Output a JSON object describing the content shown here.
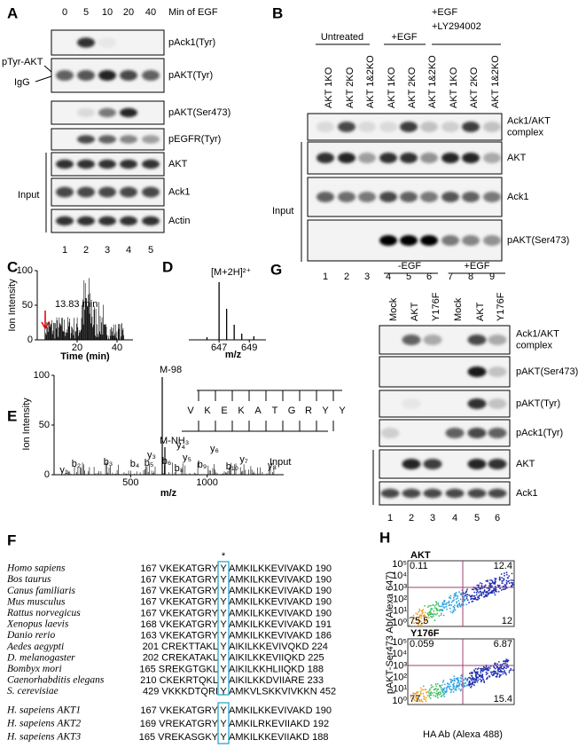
{
  "panels": {
    "A": {
      "label": "A",
      "time_values": [
        0,
        5,
        10,
        20,
        40
      ],
      "time_unit": "Min of EGF",
      "side_labels": [
        "pTyr-AKT",
        "IgG"
      ],
      "blots": [
        "pAck1(Tyr)",
        "pAKT(Tyr)",
        "pAKT(Ser473)",
        "pEGFR(Tyr)",
        "AKT",
        "Ack1",
        "Actin"
      ],
      "input_label": "Input",
      "lanes": [
        1,
        2,
        3,
        4,
        5
      ]
    },
    "B": {
      "label": "B",
      "groups": [
        [
          "Untreated"
        ],
        [
          "+EGF"
        ],
        [
          "+EGF",
          "+LY294002"
        ]
      ],
      "lane_labels": [
        "AKT 1KO",
        "AKT 2KO",
        "AKT 1&2KO",
        "AKT 1KO",
        "AKT 2KO",
        "AKT 1&2KO",
        "AKT 1KO",
        "AKT 2KO",
        "AKT 1&2KO"
      ],
      "blots": [
        [
          "Ack1/AKT",
          "complex"
        ],
        [
          "AKT"
        ],
        [
          "Ack1"
        ],
        [
          "pAKT(Ser473)"
        ]
      ],
      "input_label": "Input",
      "lanes": [
        1,
        2,
        3,
        4,
        5,
        6,
        7,
        8,
        9
      ]
    },
    "C": {
      "label": "C",
      "ylabel": "Ion Intensity",
      "yticks": [
        0,
        50,
        100
      ],
      "xlim": [
        0,
        48
      ],
      "xticks": [
        20,
        40
      ],
      "xlabel": "Time (min)",
      "annotation": "13.83 min"
    },
    "D": {
      "label": "D",
      "annotation": "[M+2H]²⁺",
      "xlim": [
        645,
        650.1
      ],
      "xticks": [
        647,
        649
      ],
      "xlabel": "m/z"
    },
    "E": {
      "label": "E",
      "ylabel": "Ion Intensity",
      "yticks": [
        0,
        50,
        100
      ],
      "xlim": [
        0,
        1500
      ],
      "xticks": [
        500,
        1000
      ],
      "xlabel": "m/z",
      "peak_labels": [
        "M-98",
        "M-NH₃"
      ],
      "sequence": [
        "V",
        "K",
        "E",
        "K",
        "A",
        "T",
        "G",
        "R",
        "Y",
        "Y"
      ],
      "b_ions": [
        "b₂",
        "b₃",
        "b₄",
        "b₅",
        "b₆",
        "b₈",
        "b₉",
        "b₁₀"
      ],
      "y_ions": [
        "y₁",
        "y₃",
        "y₄",
        "y₅",
        "y₆",
        "y₇",
        "y₈"
      ]
    },
    "F": {
      "label": "F",
      "site_marker": "*",
      "rows": [
        {
          "name": "Homo sapiens",
          "left": "167 VKEKATGRY",
          "site": "Y",
          "right": "AMKILKKEVIVAKD 190"
        },
        {
          "name": "Bos taurus",
          "left": "167 VKEKATGRY",
          "site": "Y",
          "right": "AMKILKKEVIVAKD 190"
        },
        {
          "name": "Canus familiaris",
          "left": "167 VKEKATGRY",
          "site": "Y",
          "right": "AMKILKKEVIVAKD 190"
        },
        {
          "name": "Mus musculus",
          "left": "167 VKEKATGRY",
          "site": "Y",
          "right": "AMKILKKEVIVAKD 190"
        },
        {
          "name": "Rattus norvegicus",
          "left": "167 VKEKATGRY",
          "site": "Y",
          "right": "AMKILKKEVIVAKD 190"
        },
        {
          "name": "Xenopus laevis",
          "left": "168 VKEKATGRY",
          "site": "Y",
          "right": "AMKILKKEVIVAKD 191"
        },
        {
          "name": "Danio rerio",
          "left": "163 VKEKATGRY",
          "site": "Y",
          "right": "AMKILKKEVIVAKD 186"
        },
        {
          "name": "Aedes aegypti",
          "left": "201 CREKTTAKL",
          "site": "Y",
          "right": "AIKILKKEVIVQKD 224"
        },
        {
          "name": "D. melanogaster",
          "left": "202 CREKATAKL",
          "site": "Y",
          "right": "AIKILKKEVIIQKD 225"
        },
        {
          "name": "Bombyx mori",
          "left": "165 SREKGTGKL",
          "site": "Y",
          "right": "AIKILKKHLIIQKD 188"
        },
        {
          "name": "Caenorhabditis elegans",
          "left": "210 CKEKRTQKL",
          "site": "Y",
          "right": "AIKILKKDVIIARE 233"
        },
        {
          "name": "S. cerevisiae",
          "left": "429 VKKKDTQRI",
          "site": "Y",
          "right": "AMKVLSKKVIVKKN 452"
        }
      ],
      "akt_rows": [
        {
          "name": "H. sapeiens AKT1",
          "left": "167 VKEKATGRY",
          "site": "Y",
          "right": "AMKILKKEVIVAKD 190"
        },
        {
          "name": "H. sapeiens AKT2",
          "left": "169 VREKATGRY",
          "site": "Y",
          "right": "AMKILRKEVIIAKD 192"
        },
        {
          "name": "H. sapeiens AKT3",
          "left": "165 VREKASGKY",
          "site": "Y",
          "right": "AMKILKKEVIIAKD 188"
        }
      ]
    },
    "G": {
      "label": "G",
      "groups": [
        "-EGF",
        "+EGF"
      ],
      "lane_labels": [
        "Mock",
        "AKT",
        "Y176F",
        "Mock",
        "AKT",
        "Y176F"
      ],
      "blots": [
        [
          "Ack1/AKT",
          "complex"
        ],
        [
          "pAKT(Ser473)"
        ],
        [
          "pAKT(Tyr)"
        ],
        [
          "pAck1(Tyr)"
        ],
        [
          "AKT"
        ],
        [
          "Ack1"
        ]
      ],
      "input_label": "Input",
      "lanes": [
        1,
        2,
        3,
        4,
        5,
        6
      ]
    },
    "H": {
      "label": "H",
      "ylabel": "pAKT-Ser473 Ab(Alexa 647)",
      "xlabel": "HA Ab (Alexa 488)",
      "axis_ticks": [
        "10⁵",
        "10⁴",
        "10³",
        "10²",
        "10¹",
        "10⁰"
      ],
      "plots": [
        {
          "title": "AKT",
          "quadrants": [
            0.11,
            12.4,
            75.5,
            12
          ]
        },
        {
          "title": "Y176F",
          "quadrants": [
            0.059,
            6.87,
            77,
            15.4
          ]
        }
      ]
    }
  }
}
